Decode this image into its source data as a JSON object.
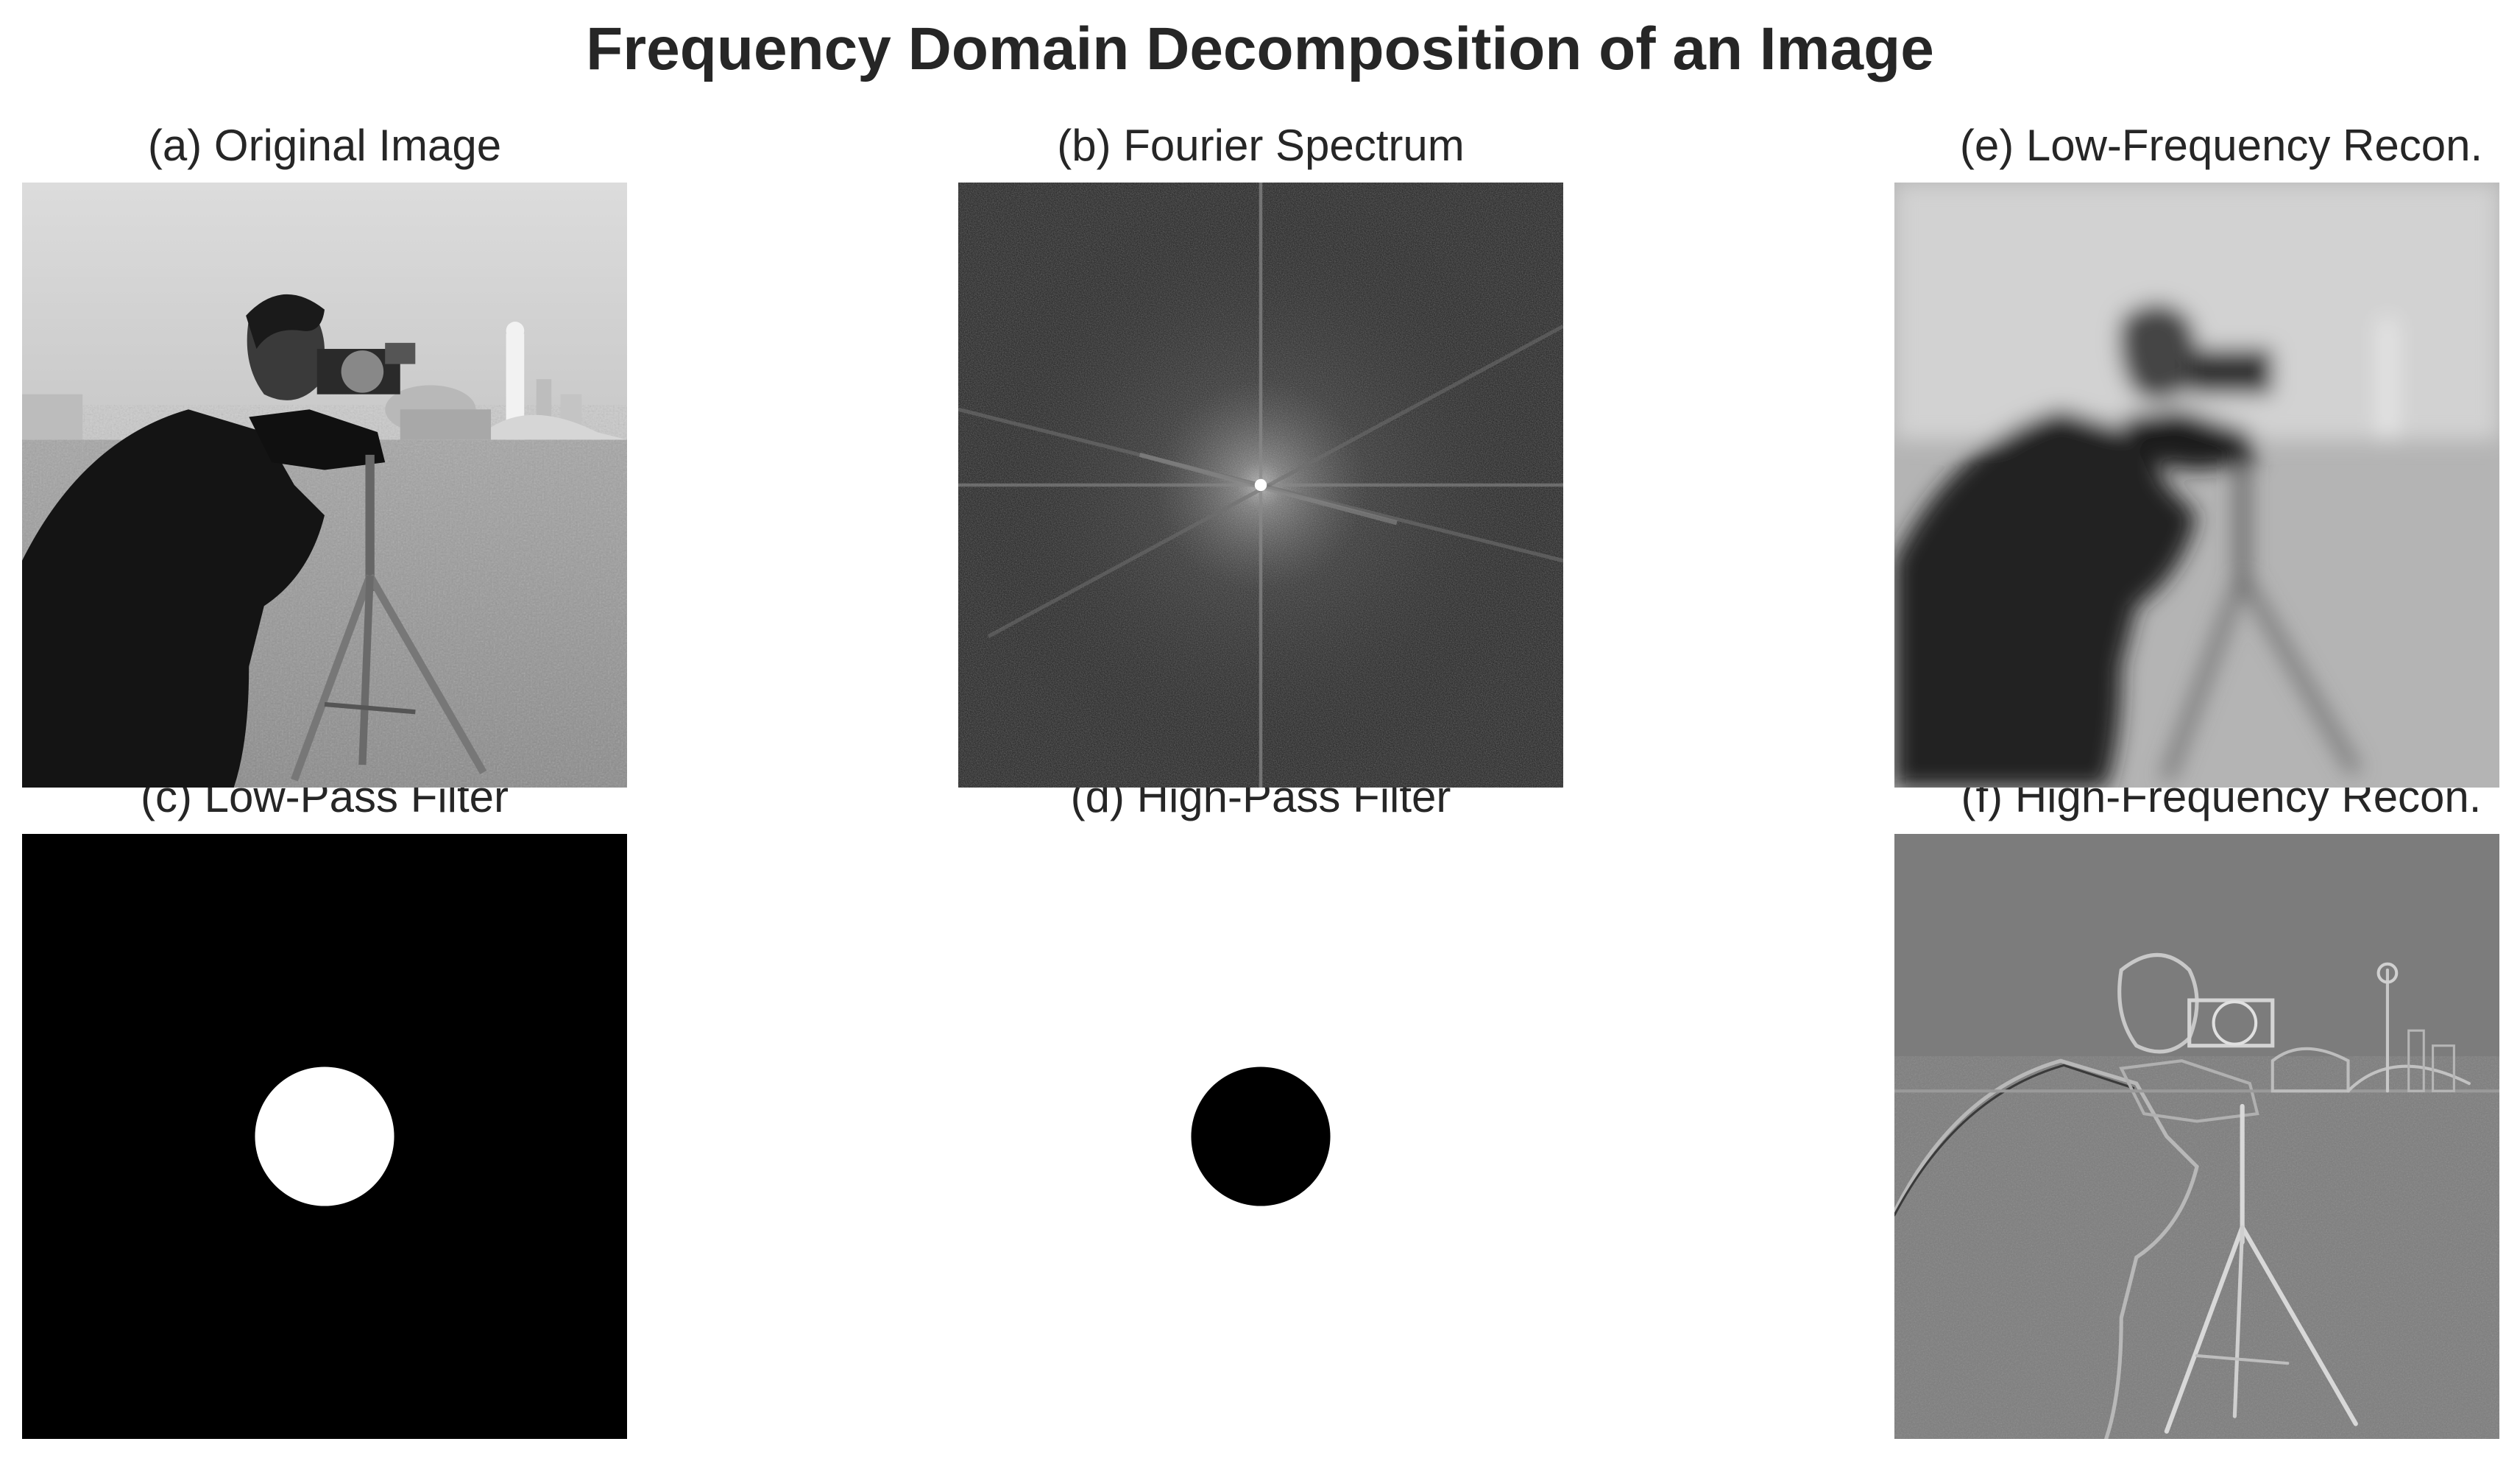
{
  "figure": {
    "title": "Frequency Domain Decomposition of an Image",
    "panels": {
      "a": {
        "title": "(a) Original Image"
      },
      "b": {
        "title": "(b) Fourier Spectrum"
      },
      "c": {
        "title": "(c) Low-Pass Filter"
      },
      "d": {
        "title": "(d) High-Pass Filter"
      },
      "e": {
        "title": "(e) Low-Frequency Recon."
      },
      "f": {
        "title": "(f) High-Frequency Recon."
      }
    }
  }
}
